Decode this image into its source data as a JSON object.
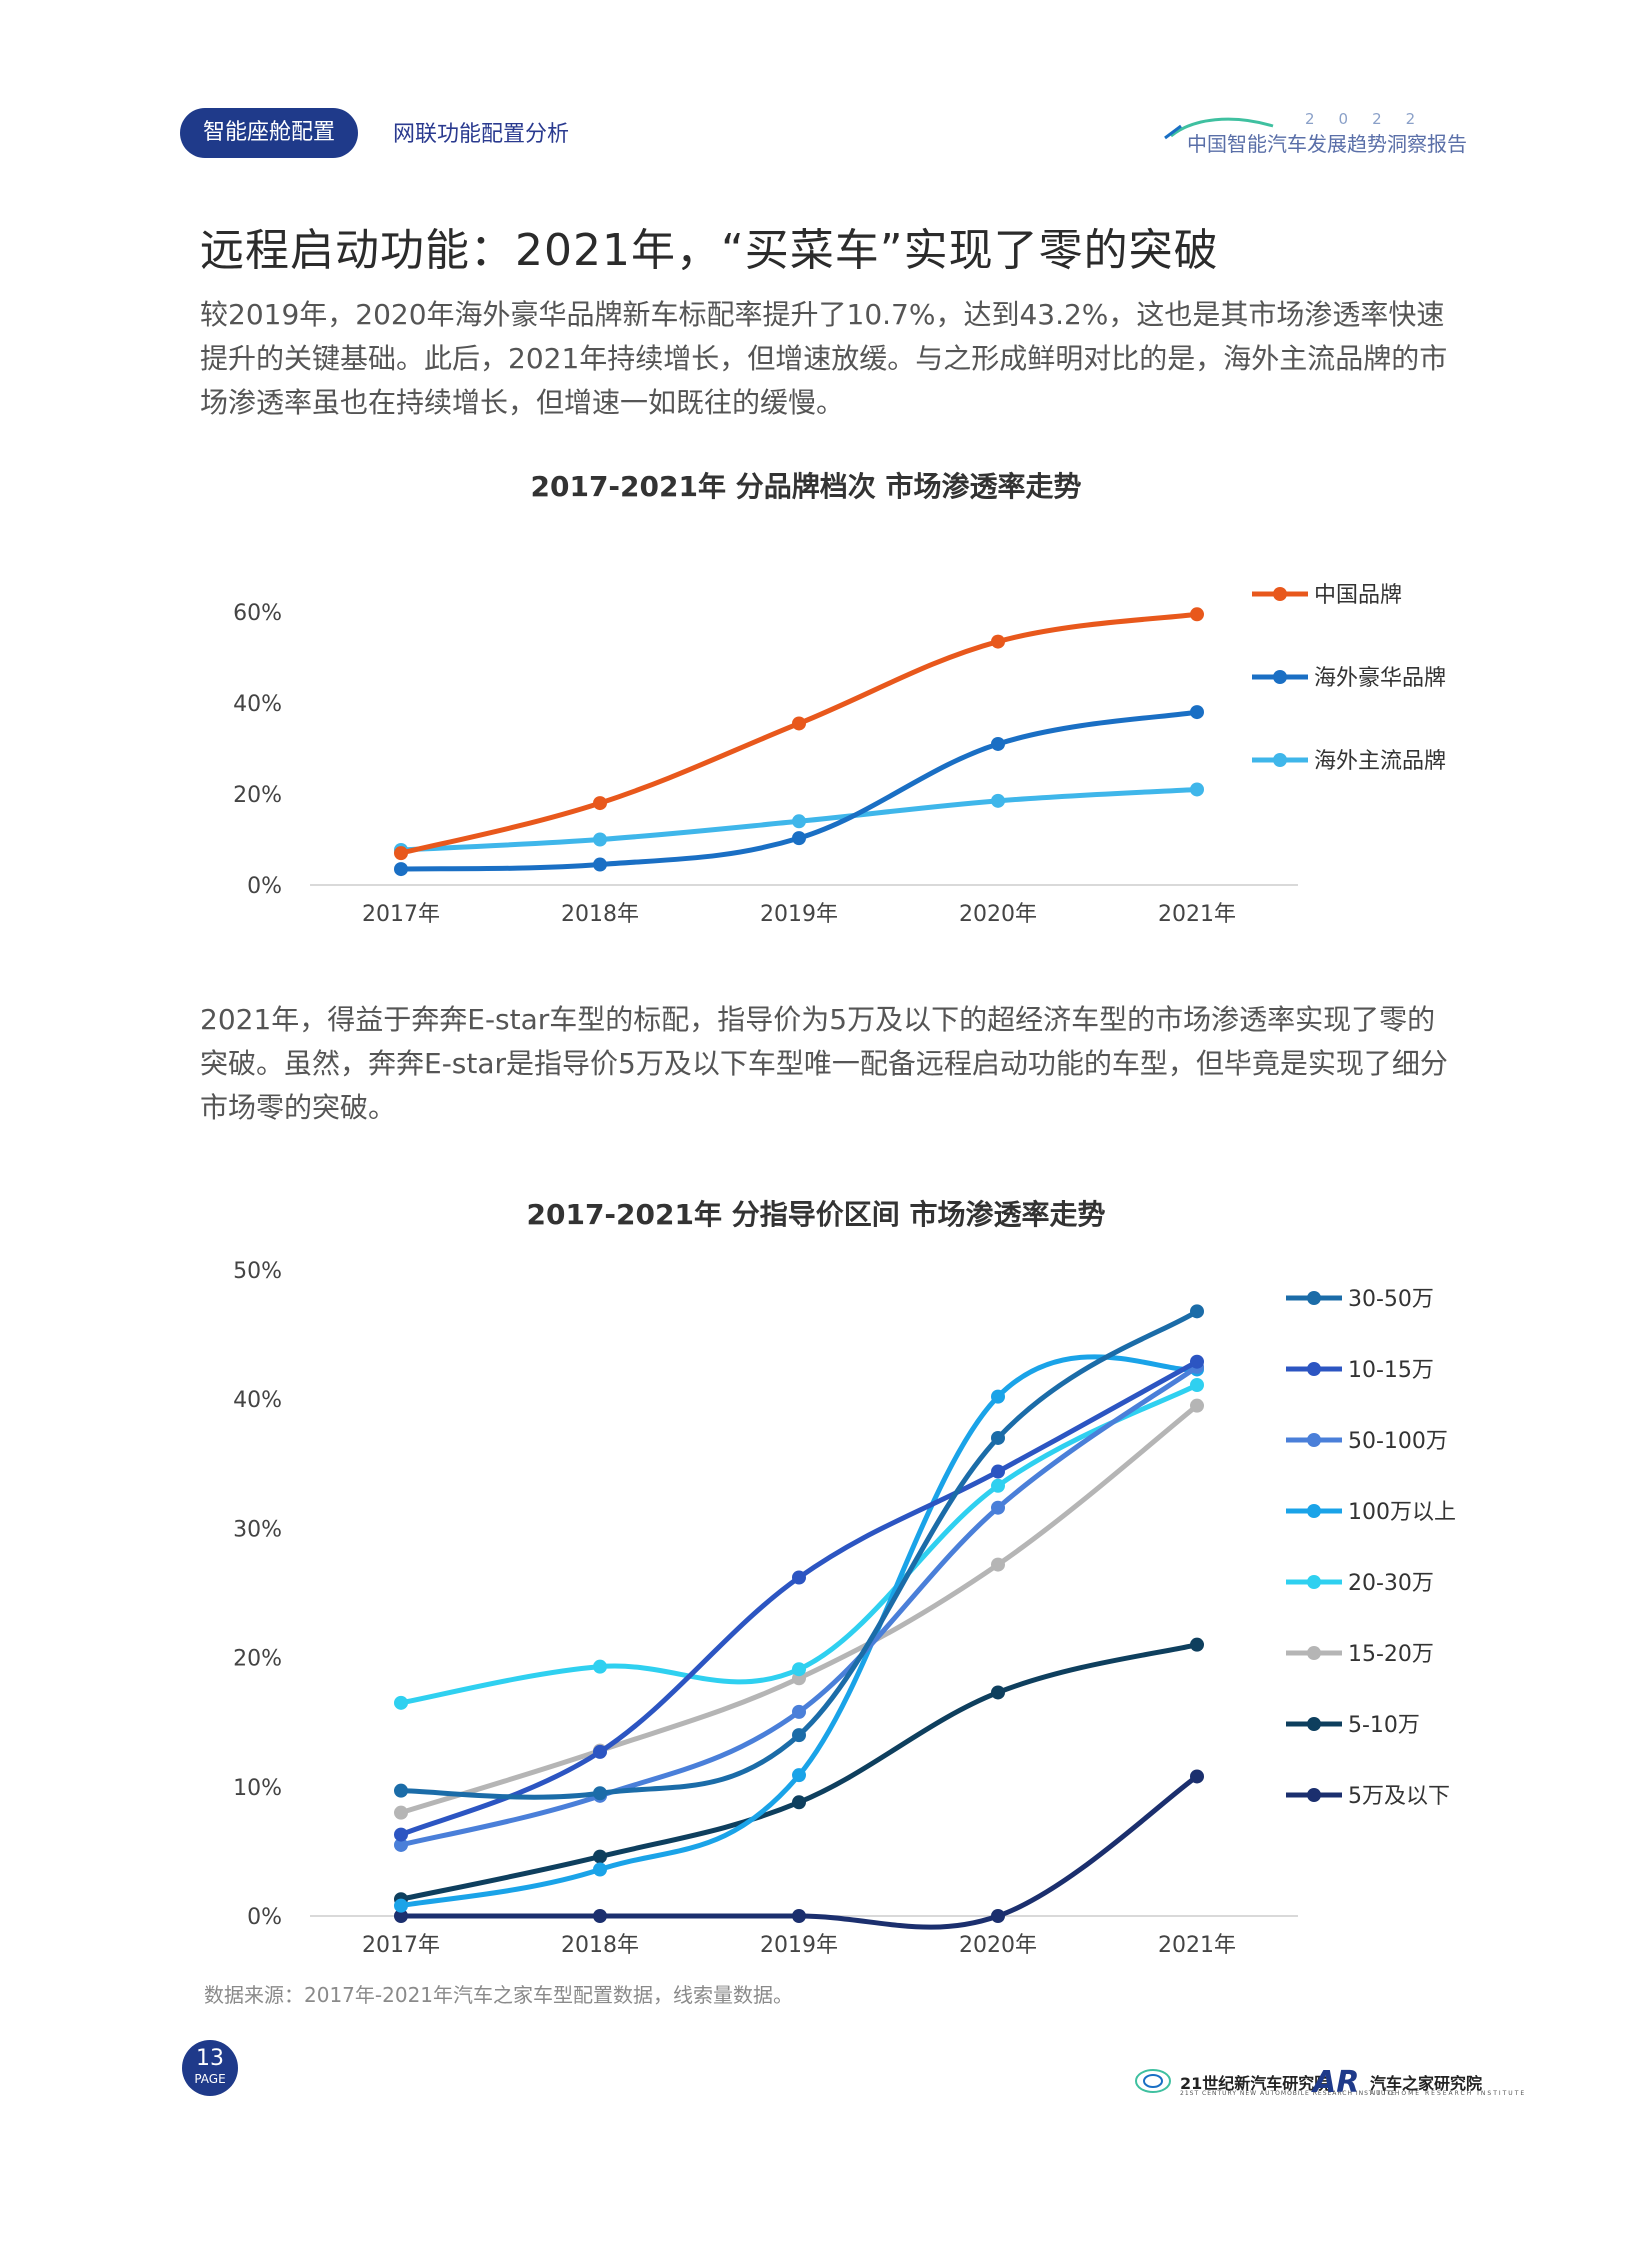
{
  "header": {
    "section_label": "智能座舱配置",
    "subtitle": "网联功能配置分析",
    "report_year": "2022",
    "report_name": "中国智能汽车发展趋势洞察报告"
  },
  "heading": "远程启动功能：2021年，“买菜车”实现了零的突破",
  "paragraph1": "较2019年，2020年海外豪华品牌新车标配率提升了10.7%，达到43.2%，这也是其市场渗透率快速提升的关键基础。此后，2021年持续增长，但增速放缓。与之形成鲜明对比的是，海外主流品牌的市场渗透率虽也在持续增长，但增速一如既往的缓慢。",
  "paragraph2": "2021年，得益于奔奔E-star车型的标配，指导价为5万及以下的超经济车型的市场渗透率实现了零的突破。虽然，奔奔E-star是指导价5万及以下车型唯一配备远程启动功能的车型，但毕竟是实现了细分市场零的突破。",
  "chart_data": [
    {
      "type": "line",
      "title": "2017-2021年 分品牌档次 市场渗透率走势",
      "categories": [
        "2017年",
        "2018年",
        "2019年",
        "2020年",
        "2021年"
      ],
      "ylim": [
        0,
        60
      ],
      "yticks": [
        "0%",
        "20%",
        "40%",
        "60%"
      ],
      "ytick_values": [
        0,
        20,
        40,
        60
      ],
      "grid": false,
      "legend_position": "right",
      "series": [
        {
          "name": "中国品牌",
          "color": "#e8581c",
          "values": [
            7,
            18,
            35.5,
            53.5,
            59.5
          ]
        },
        {
          "name": "海外豪华品牌",
          "color": "#1a6fc4",
          "values": [
            3.5,
            4.5,
            10.3,
            31,
            38
          ]
        },
        {
          "name": "海外主流品牌",
          "color": "#3fb6ea",
          "values": [
            7.7,
            10,
            14,
            18.5,
            21
          ]
        }
      ]
    },
    {
      "type": "line",
      "title": "2017-2021年 分指导价区间 市场渗透率走势",
      "categories": [
        "2017年",
        "2018年",
        "2019年",
        "2020年",
        "2021年"
      ],
      "ylim": [
        0,
        50
      ],
      "yticks": [
        "0%",
        "10%",
        "20%",
        "30%",
        "40%",
        "50%"
      ],
      "ytick_values": [
        0,
        10,
        20,
        30,
        40,
        50
      ],
      "grid": false,
      "legend_position": "right",
      "series": [
        {
          "name": "30-50万",
          "color": "#1b6ca8",
          "values": [
            9.7,
            9.5,
            14,
            37,
            46.8
          ]
        },
        {
          "name": "10-15万",
          "color": "#2c55c2",
          "values": [
            6.3,
            12.7,
            26.2,
            34.4,
            42.9
          ]
        },
        {
          "name": "50-100万",
          "color": "#4a7fd9",
          "values": [
            5.5,
            9.3,
            15.8,
            31.6,
            42.5
          ]
        },
        {
          "name": "100万以上",
          "color": "#1aa3e8",
          "values": [
            0.8,
            3.6,
            10.9,
            40.2,
            42.3
          ]
        },
        {
          "name": "20-30万",
          "color": "#2fd0f0",
          "values": [
            16.5,
            19.3,
            19.1,
            33.3,
            41.1
          ]
        },
        {
          "name": "15-20万",
          "color": "#b5b5b5",
          "values": [
            8,
            12.8,
            18.4,
            27.2,
            39.5
          ]
        },
        {
          "name": "5-10万",
          "color": "#0e3f5e",
          "values": [
            1.3,
            4.6,
            8.8,
            17.3,
            21
          ]
        },
        {
          "name": "5万及以下",
          "color": "#1b2f6e",
          "values": [
            0,
            0,
            0,
            0,
            10.8
          ]
        }
      ]
    }
  ],
  "source_note": "数据来源：2017年-2021年汽车之家车型配置数据，线索量数据。",
  "footer": {
    "page_number": "13",
    "page_label": "PAGE",
    "logo1_name": "21世纪新汽车研究院",
    "logo1_sub": "21ST CENTURY NEW AUTOMOBILE RESEARCH INSTITUTE",
    "logo2_mark": "AR",
    "logo2_name": "汽车之家研究院",
    "logo2_sub": "AUTOHOME RESEARCH INSTITUTE"
  },
  "colors": {
    "accent_navy": "#1f3a8a"
  }
}
